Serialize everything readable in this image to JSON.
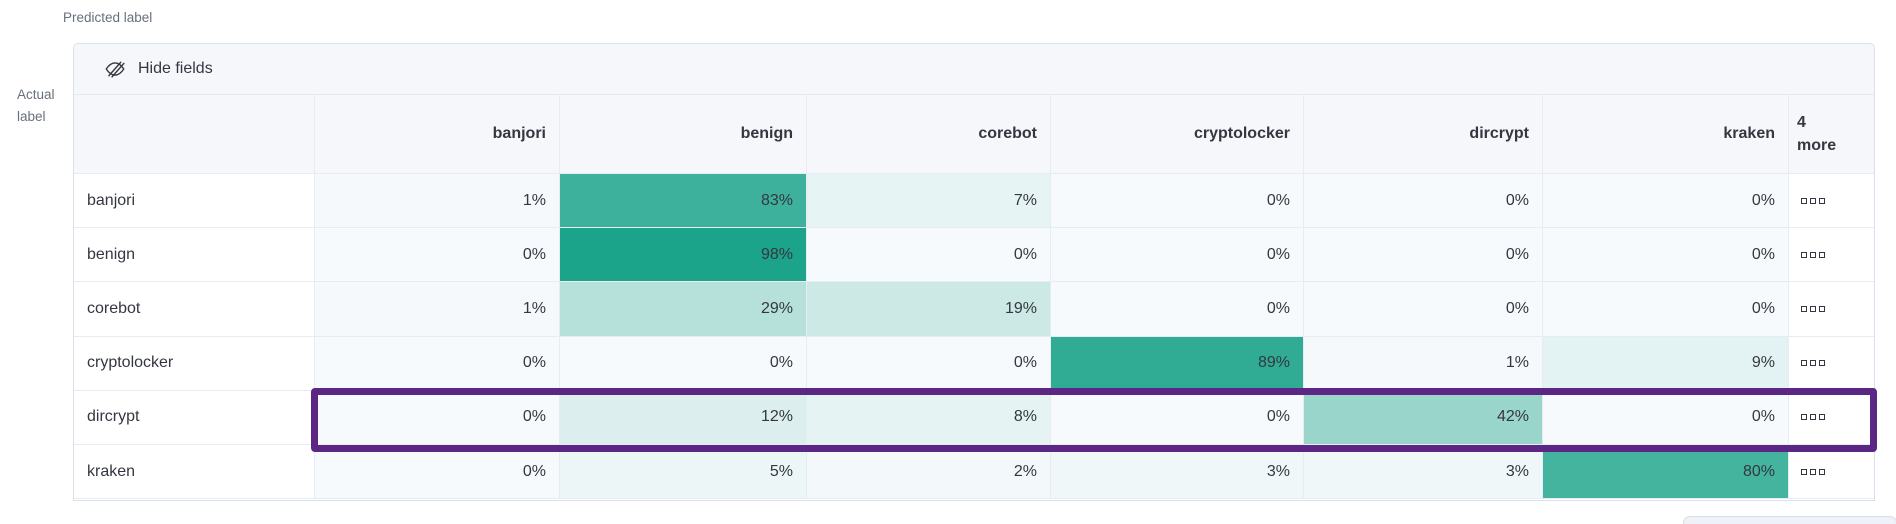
{
  "axes": {
    "predicted": "Predicted label",
    "actual": "Actual label"
  },
  "toolbar": {
    "hide_fields_label": "Hide fields",
    "hide_fields_icon": "eye-closed-icon"
  },
  "matrix": {
    "columns": [
      "banjori",
      "benign",
      "corebot",
      "cryptolocker",
      "dircrypt",
      "kraken"
    ],
    "more_columns_label": "4 more",
    "more_cell_icon": "boxes-horizontal-icon",
    "value_suffix": "%",
    "rows": [
      {
        "label": "banjori",
        "values": [
          1,
          83,
          7,
          0,
          0,
          0
        ],
        "highlighted": false
      },
      {
        "label": "benign",
        "values": [
          0,
          98,
          0,
          0,
          0,
          0
        ],
        "highlighted": false
      },
      {
        "label": "corebot",
        "values": [
          1,
          29,
          19,
          0,
          0,
          0
        ],
        "highlighted": false
      },
      {
        "label": "cryptolocker",
        "values": [
          0,
          0,
          0,
          89,
          1,
          9
        ],
        "highlighted": false
      },
      {
        "label": "dircrypt",
        "values": [
          0,
          12,
          8,
          0,
          42,
          0
        ],
        "highlighted": true
      },
      {
        "label": "kraken",
        "values": [
          0,
          5,
          2,
          3,
          3,
          80
        ],
        "highlighted": false
      }
    ]
  },
  "colors": {
    "heat_low": "#f7fafc",
    "heat_high": "#17a288",
    "highlight_border": "#5c2684",
    "header_background": "#f5f7fa",
    "grid_border": "#e7ecf4",
    "text": "#343741",
    "muted_text": "#69707d"
  }
}
